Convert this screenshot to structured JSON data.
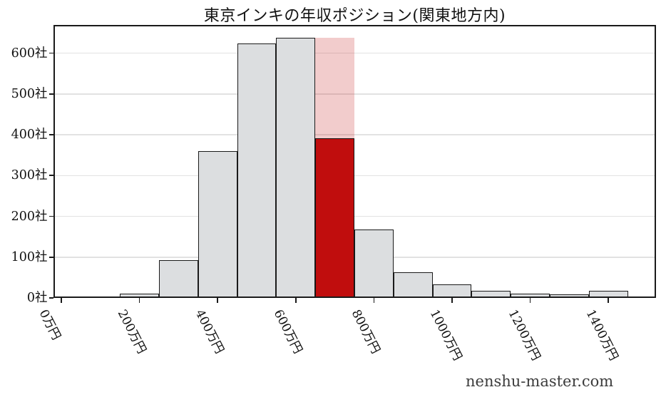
{
  "title": "東京インキの年収ポジション(関東地方内)",
  "watermark": "nenshu-master.com",
  "chart_data": {
    "type": "bar",
    "subtype": "histogram",
    "title": "東京インキの年収ポジション(関東地方内)",
    "xlabel": "",
    "ylabel": "",
    "x_unit": "万円",
    "y_unit": "社",
    "grid": "horizontal",
    "legend": "none",
    "bin_width": 100,
    "categories": [
      100,
      200,
      300,
      400,
      500,
      600,
      700,
      800,
      900,
      1000,
      1100,
      1200,
      1300,
      1400
    ],
    "values": [
      3,
      11,
      92,
      360,
      623,
      638,
      638,
      168,
      63,
      34,
      17,
      11,
      8,
      17
    ],
    "highlight": {
      "bin_center": 700,
      "bin_label": "700万円",
      "background_value": 638,
      "value": 391
    },
    "x_ticks": [
      {
        "value": 0,
        "label": "0万円"
      },
      {
        "value": 200,
        "label": "200万円"
      },
      {
        "value": 400,
        "label": "400万円"
      },
      {
        "value": 600,
        "label": "600万円"
      },
      {
        "value": 800,
        "label": "800万円"
      },
      {
        "value": 1000,
        "label": "1000万円"
      },
      {
        "value": 1200,
        "label": "1200万円"
      },
      {
        "value": 1400,
        "label": "1400万円"
      }
    ],
    "y_ticks": [
      {
        "value": 0,
        "label": "0社"
      },
      {
        "value": 100,
        "label": "100社"
      },
      {
        "value": 200,
        "label": "200社"
      },
      {
        "value": 300,
        "label": "300社"
      },
      {
        "value": 400,
        "label": "400社"
      },
      {
        "value": 500,
        "label": "500社"
      },
      {
        "value": 600,
        "label": "600社"
      }
    ],
    "xlim": [
      -20,
      1527
    ],
    "ylim": [
      0,
      669
    ],
    "colors": {
      "bar_fill": "#dcdee0",
      "bar_edge": "#1a1a1a",
      "highlight_fill": "#c00d0d",
      "highlight_background_fill": "rgba(192,13,13,0.21)",
      "grid": "#e2e2e2",
      "spine": "#1a1a1a",
      "text": "#111111",
      "watermark_text": "#3c3c3c"
    }
  }
}
